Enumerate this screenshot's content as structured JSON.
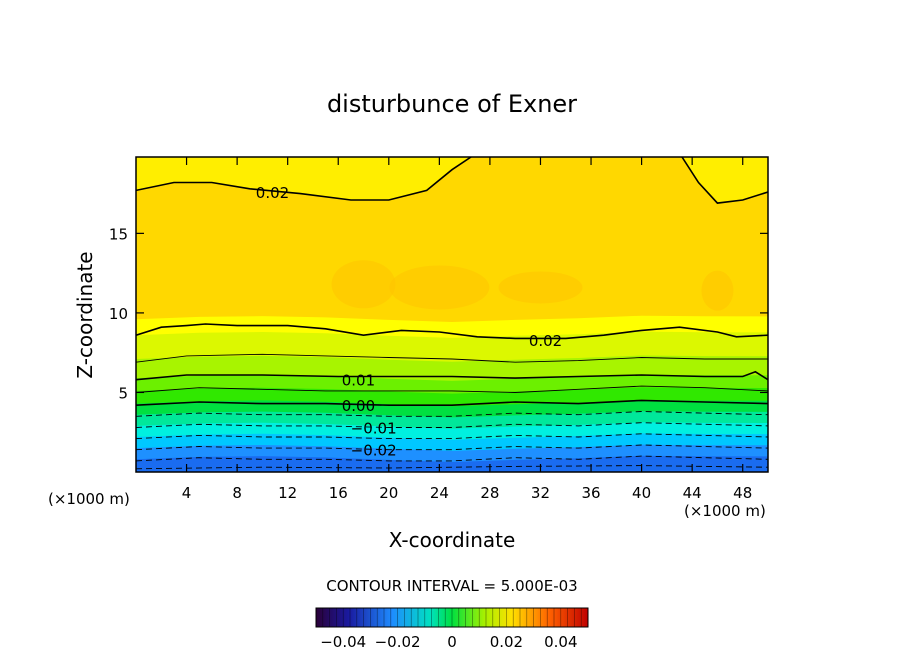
{
  "chart_data": {
    "type": "heatmap",
    "subtype": "filled contour",
    "title": "disturbunce of Exner",
    "xlabel": "X-coordinate",
    "ylabel": "Z-coordinate",
    "x_unit_left": "(×1000 m)",
    "x_unit_right": "(×1000 m)",
    "xlim": [
      0,
      50
    ],
    "ylim": [
      0,
      19.8
    ],
    "x_ticks": [
      4,
      8,
      12,
      16,
      20,
      24,
      28,
      32,
      36,
      40,
      44,
      48
    ],
    "y_ticks": [
      5,
      10,
      15
    ],
    "contour_interval_text": "CONTOUR INTERVAL = 5.000E-03",
    "contour_labels": [
      {
        "text": "0.02",
        "x": 10.8,
        "z": 17.6
      },
      {
        "text": "0.02",
        "x": 32.4,
        "z": 8.3
      },
      {
        "text": "0.01",
        "x": 17.6,
        "z": 5.8
      },
      {
        "text": "0.00",
        "x": 17.6,
        "z": 4.2
      },
      {
        "text": "−0.01",
        "x": 18.8,
        "z": 2.8
      },
      {
        "text": "−0.02",
        "x": 18.8,
        "z": 1.4
      }
    ],
    "contours": [
      {
        "level": 0.02,
        "style": "solid",
        "points": [
          [
            0,
            17.7
          ],
          [
            3,
            18.2
          ],
          [
            6,
            18.2
          ],
          [
            9,
            17.8
          ],
          [
            13,
            17.5
          ],
          [
            17,
            17.1
          ],
          [
            20,
            17.1
          ],
          [
            23,
            17.7
          ],
          [
            25,
            19
          ],
          [
            26.5,
            19.8
          ]
        ]
      },
      {
        "level": 0.02,
        "style": "solid",
        "points": [
          [
            43.2,
            19.8
          ],
          [
            44.5,
            18.2
          ],
          [
            46,
            16.9
          ],
          [
            48,
            17.1
          ],
          [
            50,
            17.6
          ]
        ]
      },
      {
        "level": 0.02,
        "style": "solid",
        "points": [
          [
            0,
            8.6
          ],
          [
            2,
            9.1
          ],
          [
            4,
            9.2
          ],
          [
            5.5,
            9.3
          ],
          [
            8,
            9.2
          ],
          [
            12,
            9.2
          ],
          [
            15,
            9.0
          ],
          [
            18,
            8.6
          ],
          [
            21,
            8.9
          ],
          [
            24,
            8.8
          ],
          [
            27,
            8.5
          ],
          [
            30,
            8.4
          ],
          [
            34,
            8.4
          ],
          [
            37,
            8.6
          ],
          [
            40,
            8.9
          ],
          [
            43,
            9.1
          ],
          [
            46,
            8.8
          ],
          [
            47.5,
            8.5
          ],
          [
            50,
            8.6
          ]
        ]
      },
      {
        "level": 0.015,
        "style": "solid",
        "points": [
          [
            0,
            6.9
          ],
          [
            4,
            7.3
          ],
          [
            10,
            7.4
          ],
          [
            15,
            7.3
          ],
          [
            20,
            7.2
          ],
          [
            25,
            7.1
          ],
          [
            30,
            6.9
          ],
          [
            35,
            7.0
          ],
          [
            40,
            7.2
          ],
          [
            45,
            7.1
          ],
          [
            50,
            7.1
          ]
        ]
      },
      {
        "level": 0.01,
        "style": "solid",
        "points": [
          [
            0,
            5.8
          ],
          [
            4,
            6.1
          ],
          [
            10,
            6.1
          ],
          [
            16,
            6.0
          ],
          [
            20,
            6.0
          ],
          [
            25,
            6.0
          ],
          [
            30,
            5.9
          ],
          [
            35,
            6.0
          ],
          [
            40,
            6.1
          ],
          [
            45,
            6.0
          ],
          [
            48,
            6.0
          ],
          [
            49,
            6.3
          ],
          [
            50,
            5.8
          ]
        ]
      },
      {
        "level": 0.005,
        "style": "solid",
        "points": [
          [
            0,
            5.0
          ],
          [
            5,
            5.3
          ],
          [
            10,
            5.2
          ],
          [
            15,
            5.1
          ],
          [
            20,
            5.1
          ],
          [
            25,
            5.1
          ],
          [
            30,
            5.0
          ],
          [
            35,
            5.2
          ],
          [
            40,
            5.4
          ],
          [
            45,
            5.3
          ],
          [
            50,
            5.1
          ]
        ]
      },
      {
        "level": 0.0,
        "style": "solid",
        "points": [
          [
            0,
            4.2
          ],
          [
            5,
            4.4
          ],
          [
            10,
            4.3
          ],
          [
            15,
            4.3
          ],
          [
            20,
            4.2
          ],
          [
            25,
            4.2
          ],
          [
            30,
            4.4
          ],
          [
            35,
            4.3
          ],
          [
            40,
            4.5
          ],
          [
            45,
            4.4
          ],
          [
            50,
            4.3
          ]
        ]
      },
      {
        "level": -0.005,
        "style": "dashed",
        "points": [
          [
            0,
            3.5
          ],
          [
            5,
            3.7
          ],
          [
            10,
            3.6
          ],
          [
            15,
            3.6
          ],
          [
            20,
            3.5
          ],
          [
            25,
            3.5
          ],
          [
            30,
            3.7
          ],
          [
            35,
            3.6
          ],
          [
            40,
            3.8
          ],
          [
            45,
            3.7
          ],
          [
            50,
            3.6
          ]
        ]
      },
      {
        "level": -0.01,
        "style": "dashed",
        "points": [
          [
            0,
            2.8
          ],
          [
            5,
            3.0
          ],
          [
            10,
            2.9
          ],
          [
            15,
            2.9
          ],
          [
            20,
            2.8
          ],
          [
            25,
            2.8
          ],
          [
            30,
            3.0
          ],
          [
            35,
            2.9
          ],
          [
            40,
            3.1
          ],
          [
            45,
            3.0
          ],
          [
            50,
            2.9
          ]
        ]
      },
      {
        "level": -0.015,
        "style": "dashed",
        "points": [
          [
            0,
            2.1
          ],
          [
            5,
            2.3
          ],
          [
            10,
            2.2
          ],
          [
            15,
            2.2
          ],
          [
            20,
            2.1
          ],
          [
            25,
            2.1
          ],
          [
            30,
            2.3
          ],
          [
            35,
            2.2
          ],
          [
            40,
            2.4
          ],
          [
            45,
            2.3
          ],
          [
            50,
            2.2
          ]
        ]
      },
      {
        "level": -0.02,
        "style": "dashed",
        "points": [
          [
            0,
            1.4
          ],
          [
            5,
            1.6
          ],
          [
            10,
            1.5
          ],
          [
            15,
            1.5
          ],
          [
            20,
            1.4
          ],
          [
            25,
            1.4
          ],
          [
            30,
            1.6
          ],
          [
            35,
            1.5
          ],
          [
            40,
            1.7
          ],
          [
            45,
            1.6
          ],
          [
            50,
            1.5
          ]
        ]
      },
      {
        "level": -0.025,
        "style": "dashed",
        "points": [
          [
            0,
            0.7
          ],
          [
            5,
            0.9
          ],
          [
            10,
            0.8
          ],
          [
            15,
            0.8
          ],
          [
            20,
            0.7
          ],
          [
            25,
            0.7
          ],
          [
            30,
            0.9
          ],
          [
            35,
            0.8
          ],
          [
            40,
            1.0
          ],
          [
            45,
            0.9
          ],
          [
            50,
            0.8
          ]
        ]
      },
      {
        "level": -0.03,
        "style": "dashed",
        "points": [
          [
            0,
            0.2
          ],
          [
            10,
            0.3
          ],
          [
            20,
            0.25
          ],
          [
            30,
            0.35
          ],
          [
            40,
            0.4
          ],
          [
            50,
            0.3
          ]
        ]
      }
    ],
    "fill_bands": [
      {
        "color": "#1a6cf0",
        "top": 0.8
      },
      {
        "color": "#1e90ff",
        "top": 1.5
      },
      {
        "color": "#00c8ff",
        "top": 2.2
      },
      {
        "color": "#00f0e0",
        "top": 2.9
      },
      {
        "color": "#00e89a",
        "top": 3.6
      },
      {
        "color": "#00e040",
        "top": 4.3
      },
      {
        "color": "#30e800",
        "top": 5.1
      },
      {
        "color": "#6cf000",
        "top": 5.9
      },
      {
        "color": "#a8f400",
        "top": 7.1
      },
      {
        "color": "#dcf800",
        "top": 8.6
      },
      {
        "color": "#ffff00",
        "top": 9.6
      }
    ],
    "fill_main": "#ffd800",
    "fill_low_patches": "#ffc400",
    "colorbar": {
      "range": [
        -0.05,
        0.05
      ],
      "tick_labels": [
        {
          "value": -0.04,
          "text": "−0.04"
        },
        {
          "value": -0.02,
          "text": "−0.02"
        },
        {
          "value": 0,
          "text": "0"
        },
        {
          "value": 0.02,
          "text": "0.02"
        },
        {
          "value": 0.04,
          "text": "0.04"
        }
      ]
    }
  }
}
